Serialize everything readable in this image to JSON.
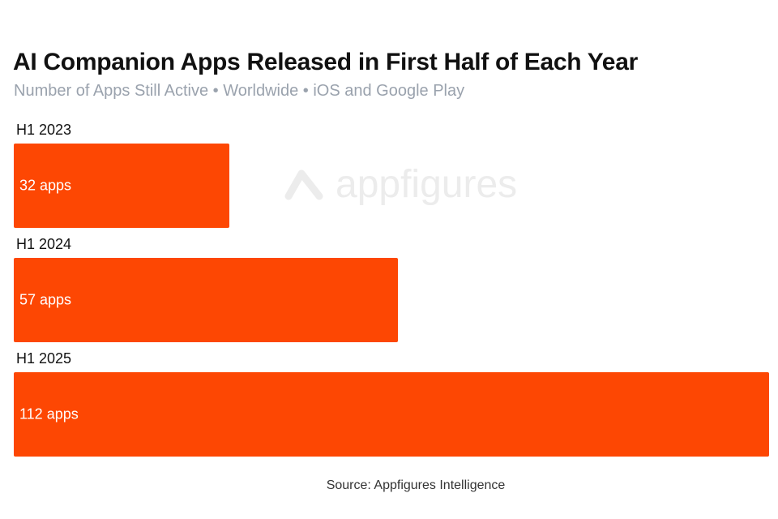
{
  "chart_data": {
    "type": "bar",
    "orientation": "horizontal",
    "title": "AI Companion Apps Released in First Half of Each Year",
    "subtitle": "Number of Apps Still Active • Worldwide • iOS and Google Play",
    "categories": [
      "H1 2023",
      "H1 2024",
      "H1 2025"
    ],
    "values": [
      32,
      57,
      112
    ],
    "data_labels": [
      "32 apps",
      "57 apps",
      "112 apps"
    ],
    "xlim": [
      0,
      112
    ],
    "xlabel": "",
    "ylabel": "",
    "grid": false,
    "bar_color": "#fd4703",
    "watermark": "appfigures",
    "source": "Source: Appfigures Intelligence"
  }
}
